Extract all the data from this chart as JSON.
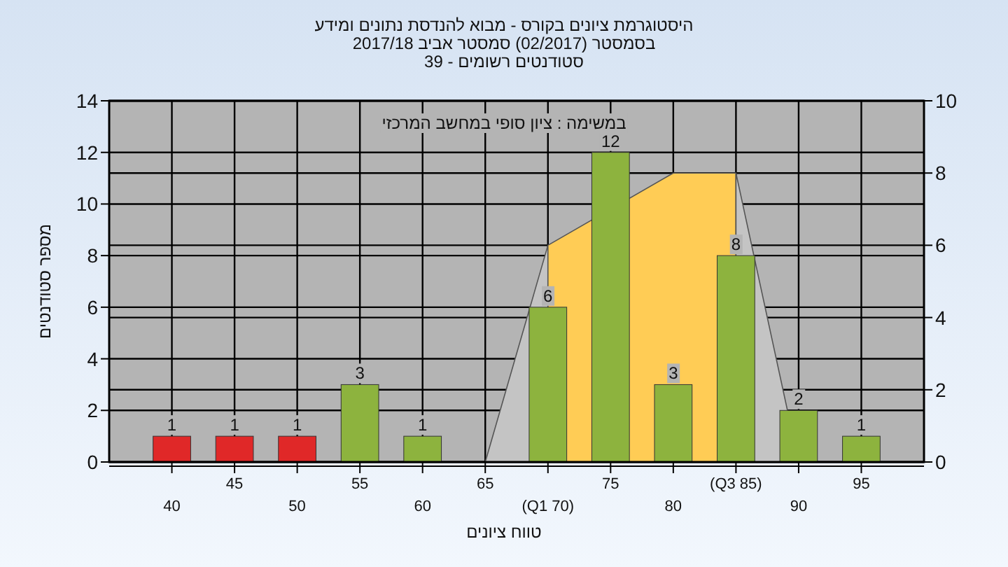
{
  "chart_data": {
    "type": "bar",
    "title": "היסטוגרמת ציונים בקורס - מבוא להנדסת נתונים ומידע",
    "subtitle": "בסמסטר  (02/2017)  סמסטר אביב 2017/18",
    "annotations": [
      "סטודנטים רשומים - 39",
      "במשימה : ציון סופי במחשב המרכזי"
    ],
    "xlabel": "טווח ציונים",
    "ylabel": "מספר סטודנטים",
    "categories": [
      "40",
      "45",
      "50",
      "55",
      "60",
      "65",
      "(Q1 70)",
      "75",
      "80",
      "(Q3 85)",
      "90",
      "95"
    ],
    "series": [
      {
        "colors": [
          "#e02828",
          "#e02828",
          "#e02828",
          "#8db33e",
          "#8db33e",
          "#8db33e",
          "#8db33e",
          "#8db33e",
          "#8db33e",
          "#8db33e",
          "#8db33e",
          "#8db33e"
        ],
        "values": [
          1,
          1,
          1,
          3,
          1,
          0,
          6,
          12,
          3,
          8,
          2,
          1
        ],
        "value_labels": [
          "1",
          "1",
          "1",
          "3",
          "1",
          null,
          "6",
          "12",
          "3",
          "8",
          "2",
          "1"
        ]
      },
      {
        "type": "area",
        "axis": "y2",
        "color": "#c4c4c4",
        "values": [
          null,
          null,
          null,
          null,
          null,
          0,
          6,
          null,
          null,
          null,
          null,
          null
        ]
      },
      {
        "type": "area",
        "axis": "y2",
        "color": "#ffcc55",
        "values": [
          null,
          null,
          null,
          null,
          null,
          null,
          6,
          null,
          8,
          8,
          null,
          null
        ]
      },
      {
        "type": "area",
        "axis": "y2",
        "color": "#c4c4c4",
        "values": [
          null,
          null,
          null,
          null,
          null,
          null,
          null,
          null,
          null,
          8,
          0,
          null
        ]
      }
    ],
    "ylim": [
      0,
      14
    ],
    "yticks": [
      0,
      2,
      4,
      6,
      8,
      10,
      12,
      14
    ],
    "y2lim": [
      0,
      10
    ],
    "y2ticks": [
      0,
      2,
      4,
      6,
      8,
      10
    ],
    "grid": true
  }
}
